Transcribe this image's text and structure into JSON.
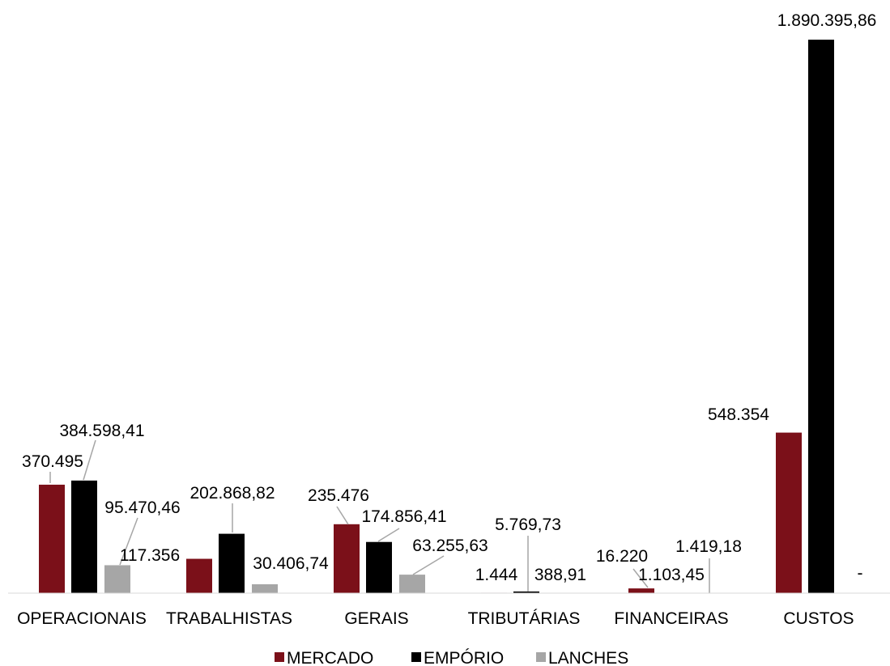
{
  "chart_data": {
    "type": "bar",
    "title": "",
    "xlabel": "",
    "ylabel": "",
    "ylim": [
      0,
      1890395.86
    ],
    "grid": false,
    "legend_position": "bottom",
    "categories": [
      "OPERACIONAIS",
      "TRABALHISTAS",
      "GERAIS",
      "TRIBUTÁRIAS",
      "FINANCEIRAS",
      "CUSTOS"
    ],
    "series": [
      {
        "name": "MERCADO",
        "color": "#7b1019",
        "values": [
          370495,
          117356,
          235476,
          1444,
          16220,
          548354
        ],
        "labels": [
          "370.495",
          "117.356",
          "235.476",
          "1.444",
          "16.220",
          "548.354"
        ]
      },
      {
        "name": "EMPÓRIO",
        "color": "#000000",
        "values": [
          384598.41,
          202868.82,
          174856.41,
          5769.73,
          1103.45,
          1890395.86
        ],
        "labels": [
          "384.598,41",
          "202.868,82",
          "174.856,41",
          "5.769,73",
          "1.103,45",
          "1.890.395,86"
        ]
      },
      {
        "name": "LANCHES",
        "color": "#a6a6a6",
        "values": [
          95470.46,
          30406.74,
          63255.63,
          388.91,
          1419.18,
          0
        ],
        "labels": [
          "95.470,46",
          "30.406,74",
          "63.255,63",
          "388,91",
          "1.419,18",
          "-"
        ]
      }
    ]
  }
}
